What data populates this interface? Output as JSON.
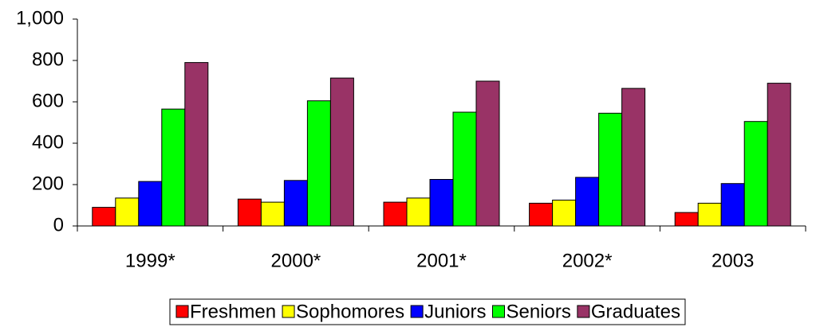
{
  "chart_data": {
    "type": "bar",
    "categories": [
      "1999*",
      "2000*",
      "2001*",
      "2002*",
      "2003"
    ],
    "series": [
      {
        "name": "Freshmen",
        "color": "#ff0000",
        "values": [
          90,
          130,
          115,
          110,
          65
        ]
      },
      {
        "name": "Sophomores",
        "color": "#ffff00",
        "values": [
          135,
          115,
          135,
          125,
          110
        ]
      },
      {
        "name": "Juniors",
        "color": "#0000ff",
        "values": [
          215,
          220,
          225,
          235,
          205
        ]
      },
      {
        "name": "Seniors",
        "color": "#00ff00",
        "values": [
          565,
          605,
          550,
          545,
          505
        ]
      },
      {
        "name": "Graduates",
        "color": "#993366",
        "values": [
          790,
          715,
          700,
          665,
          690
        ]
      }
    ],
    "ylim": [
      0,
      1000
    ],
    "yticks": [
      0,
      200,
      400,
      600,
      800,
      {
        "value": 1000,
        "label": "1,000"
      }
    ],
    "grid": false,
    "legend": "bottom"
  }
}
